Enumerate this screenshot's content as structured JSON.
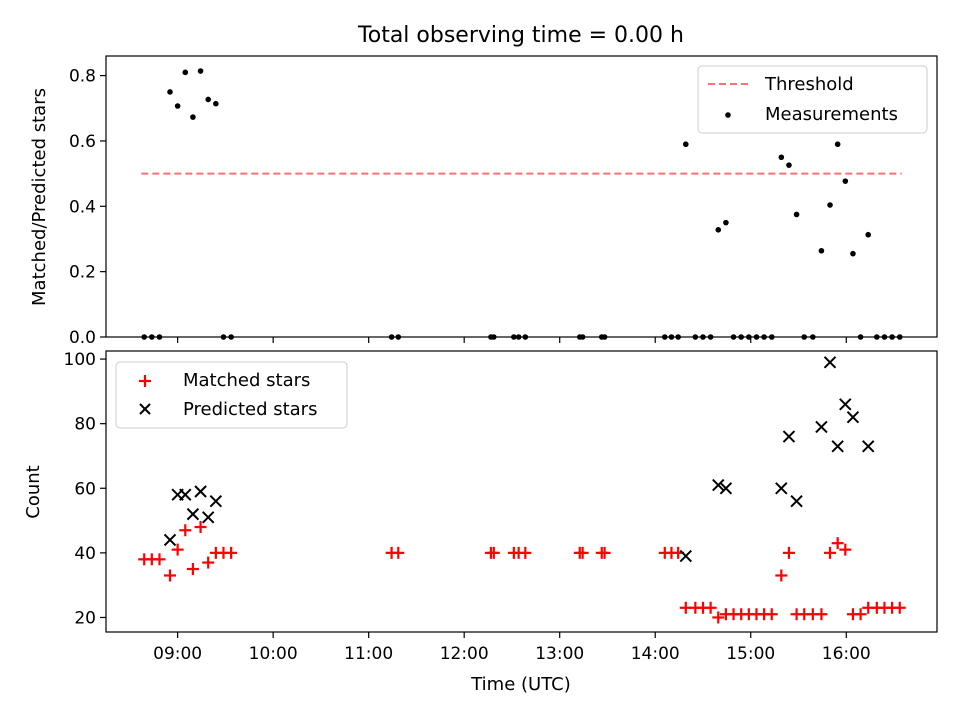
{
  "figure_title": "Total observing time = 0.00 h",
  "x_axis": {
    "label": "Time (UTC)",
    "range_hours": [
      8.25,
      16.95
    ],
    "ticks": [
      {
        "value": 9,
        "label": "09:00"
      },
      {
        "value": 10,
        "label": "10:00"
      },
      {
        "value": 11,
        "label": "11:00"
      },
      {
        "value": 12,
        "label": "12:00"
      },
      {
        "value": 13,
        "label": "13:00"
      },
      {
        "value": 14,
        "label": "14:00"
      },
      {
        "value": 15,
        "label": "15:00"
      },
      {
        "value": 16,
        "label": "16:00"
      }
    ]
  },
  "colors": {
    "threshold": "#ff6f6f",
    "measurements": "#000000",
    "matched": "#ff0000",
    "predicted": "#000000"
  },
  "chart_data": [
    {
      "type": "scatter",
      "title": "Total observing time = 0.00 h",
      "ylabel": "Matched/Predicted stars",
      "xlabel": "",
      "ylim": [
        0,
        0.86
      ],
      "yticks": [
        "0.0",
        "0.2",
        "0.4",
        "0.6",
        "0.8"
      ],
      "legend_position": "top-right",
      "threshold": {
        "name": "Threshold",
        "value": 0.5,
        "x_range": [
          8.62,
          16.58
        ]
      },
      "series": [
        {
          "name": "Measurements",
          "x": [
            8.65,
            8.73,
            8.81,
            8.92,
            9.0,
            9.08,
            9.16,
            9.24,
            9.32,
            9.4,
            9.48,
            9.56,
            11.24,
            11.31,
            12.28,
            12.31,
            12.52,
            12.57,
            12.64,
            13.21,
            13.24,
            13.44,
            13.47,
            14.1,
            14.17,
            14.24,
            14.32,
            14.42,
            14.5,
            14.58,
            14.66,
            14.74,
            14.82,
            14.9,
            14.98,
            15.06,
            15.14,
            15.22,
            15.32,
            15.4,
            15.48,
            15.56,
            15.65,
            15.74,
            15.83,
            15.91,
            15.99,
            16.07,
            16.15,
            16.23,
            16.32,
            16.4,
            16.48,
            16.56
          ],
          "y": [
            0,
            0,
            0,
            0.75,
            0.707,
            0.81,
            0.673,
            0.814,
            0.727,
            0.714,
            0,
            0,
            0,
            0,
            0,
            0,
            0,
            0,
            0,
            0,
            0,
            0,
            0,
            0,
            0,
            0,
            0.59,
            0,
            0,
            0,
            0.328,
            0.35,
            0,
            0,
            0,
            0,
            0,
            0,
            0.55,
            0.526,
            0.375,
            0,
            0,
            0.264,
            0.404,
            0.59,
            0.477,
            0.255,
            0,
            0.313,
            0,
            0,
            0,
            0
          ]
        }
      ]
    },
    {
      "type": "scatter",
      "title": "",
      "ylabel": "Count",
      "xlabel": "Time (UTC)",
      "ylim": [
        15.5,
        102.5
      ],
      "yticks": [
        "20",
        "40",
        "60",
        "80",
        "100"
      ],
      "legend_position": "top-left",
      "series": [
        {
          "name": "Matched stars",
          "marker": "plus",
          "x": [
            8.65,
            8.73,
            8.81,
            8.92,
            9.0,
            9.08,
            9.16,
            9.24,
            9.32,
            9.4,
            9.48,
            9.56,
            11.24,
            11.31,
            12.28,
            12.31,
            12.52,
            12.57,
            12.64,
            13.21,
            13.24,
            13.44,
            13.47,
            14.1,
            14.17,
            14.24,
            14.32,
            14.42,
            14.5,
            14.58,
            14.66,
            14.74,
            14.82,
            14.9,
            14.98,
            15.06,
            15.14,
            15.22,
            15.32,
            15.4,
            15.48,
            15.56,
            15.65,
            15.74,
            15.83,
            15.91,
            15.99,
            16.07,
            16.15,
            16.23,
            16.32,
            16.4,
            16.48,
            16.56
          ],
          "y": [
            38,
            38,
            38,
            33,
            41,
            47,
            35,
            48,
            37,
            40,
            40,
            40,
            40,
            40,
            40,
            40,
            40,
            40,
            40,
            40,
            40,
            40,
            40,
            40,
            40,
            40,
            23,
            23,
            23,
            23,
            20,
            21,
            21,
            21,
            21,
            21,
            21,
            21,
            33,
            40,
            21,
            21,
            21,
            21,
            40,
            43,
            41,
            21,
            21,
            23,
            23,
            23,
            23,
            23
          ]
        },
        {
          "name": "Predicted stars",
          "marker": "x",
          "x": [
            8.92,
            9.0,
            9.08,
            9.16,
            9.24,
            9.32,
            9.4,
            14.32,
            14.66,
            14.74,
            15.32,
            15.4,
            15.48,
            15.74,
            15.83,
            15.91,
            15.99,
            16.07,
            16.23
          ],
          "y": [
            44,
            58,
            58,
            52,
            59,
            51,
            56,
            39,
            61,
            60,
            60,
            76,
            56,
            79,
            99,
            73,
            86,
            82,
            73
          ]
        }
      ]
    }
  ]
}
